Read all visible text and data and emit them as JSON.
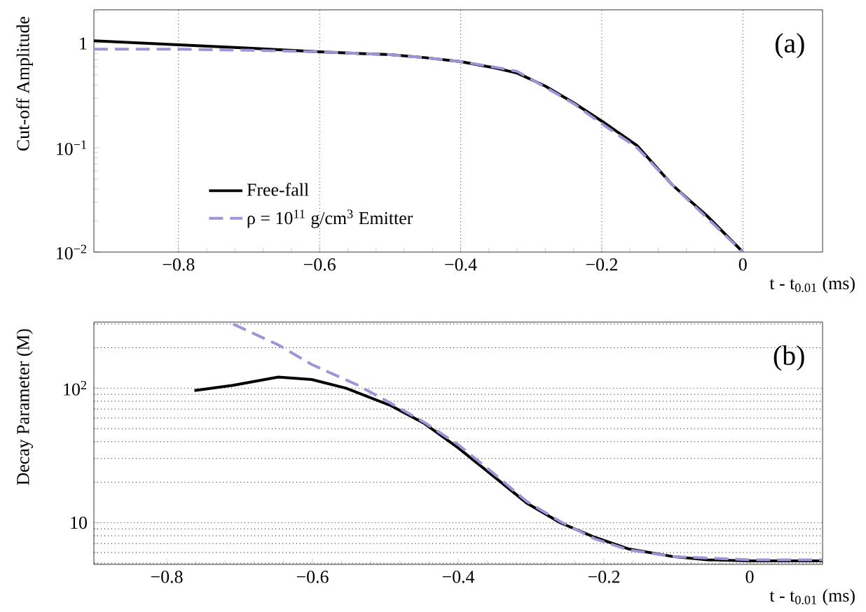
{
  "chart_data": [
    {
      "type": "line",
      "ylabel": "Cut-off Amplitude",
      "xlabel": "t - t$_{0.01}$ (ms)",
      "annotations": [
        "(a)"
      ],
      "log": "y",
      "grid": "x",
      "legend": "bottom left",
      "xlim": [
        -0.92,
        0.113
      ],
      "ylim": [
        0.01,
        2.1
      ],
      "xticks": [
        {
          "value": -0.8,
          "label": "−0.8"
        },
        {
          "value": -0.6,
          "label": "−0.6"
        },
        {
          "value": -0.4,
          "label": "−0.4"
        },
        {
          "value": -0.2,
          "label": "−0.2"
        },
        0
      ],
      "yticks": [
        {
          "value": 0.01,
          "label": "10$^{−2}$"
        },
        {
          "value": 0.1,
          "label": "10$^{−1}$"
        },
        1
      ],
      "series": [
        {
          "name": "Free-fall",
          "color": "#000000",
          "line_style": "solid",
          "x": [
            -0.92,
            -0.8,
            -0.7,
            -0.6,
            -0.5,
            -0.45,
            -0.4,
            -0.35,
            -0.32,
            -0.28,
            -0.24,
            -0.2,
            -0.15,
            -0.1,
            -0.05,
            0
          ],
          "values": [
            1.06,
            0.97,
            0.9,
            0.83,
            0.78,
            0.73,
            0.67,
            0.58,
            0.52,
            0.39,
            0.27,
            0.18,
            0.105,
            0.044,
            0.022,
            0.01
          ]
        },
        {
          "name": "ρ = 10$^{11}$ g/cm$^{3}$ Emitter",
          "color": "#9f95d6",
          "line_style": "dashed",
          "x": [
            -0.92,
            -0.8,
            -0.7,
            -0.6,
            -0.5,
            -0.45,
            -0.4,
            -0.35,
            -0.32,
            -0.28,
            -0.24,
            -0.2,
            -0.15,
            -0.1,
            -0.05,
            0
          ],
          "values": [
            0.88,
            0.88,
            0.86,
            0.83,
            0.78,
            0.73,
            0.67,
            0.59,
            0.54,
            0.38,
            0.265,
            0.17,
            0.1,
            0.044,
            0.021,
            0.01
          ]
        }
      ]
    },
    {
      "type": "line",
      "ylabel": "Decay Parameter (M)",
      "xlabel": "t - t$_{0.01}$ (ms)",
      "annotations": [
        "(b)"
      ],
      "log": "y",
      "grid": "y",
      "xlim": [
        -0.9,
        0.1
      ],
      "ylim": [
        4.9,
        310
      ],
      "xticks": [
        {
          "value": -0.8,
          "label": "−0.8"
        },
        {
          "value": -0.6,
          "label": "−0.6"
        },
        {
          "value": -0.4,
          "label": "−0.4"
        },
        {
          "value": -0.2,
          "label": "−0.2"
        },
        0
      ],
      "yticks": [
        10,
        {
          "value": 100,
          "label": "10$^{2}$"
        }
      ],
      "series": [
        {
          "color": "#000000",
          "line_style": "solid",
          "x": [
            -0.762,
            -0.709,
            -0.647,
            -0.601,
            -0.554,
            -0.492,
            -0.446,
            -0.4,
            -0.353,
            -0.306,
            -0.26,
            -0.213,
            -0.167,
            -0.105,
            -0.058,
            0,
            0.1
          ],
          "values": [
            96,
            105,
            121,
            116,
            100,
            74,
            54.5,
            36,
            22.5,
            14,
            10,
            7.8,
            6.4,
            5.6,
            5.3,
            5.2,
            5.2
          ]
        },
        {
          "color": "#9f95d6",
          "line_style": "dashed",
          "x": [
            -0.709,
            -0.647,
            -0.601,
            -0.539,
            -0.492,
            -0.446,
            -0.4,
            -0.353,
            -0.306,
            -0.26,
            -0.213,
            -0.167,
            -0.105,
            0,
            0.1
          ],
          "values": [
            300,
            210,
            150,
            106,
            77,
            55.5,
            38,
            23.6,
            14.4,
            10.2,
            7.6,
            6.3,
            5.6,
            5.3,
            5.3
          ]
        }
      ]
    }
  ]
}
